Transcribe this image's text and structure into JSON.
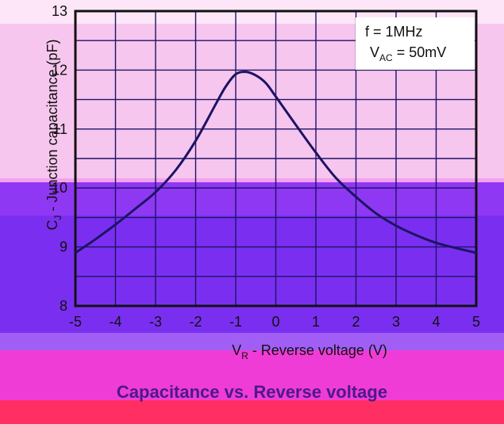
{
  "colors": {
    "band_pink_light": "#fde6f7",
    "band_pink": "#f7c6ee",
    "band_magenta": "#f3a2ec",
    "band_purple": "#8f38f4",
    "band_violet": "#7a2ff0",
    "band_violet_mid": "#a05ef5",
    "band_hot_pink": "#f03cd6",
    "band_red": "#ff2e63",
    "curve": "#1c1464",
    "frame": "#111111",
    "grid": "#1c1464"
  },
  "caption": "Capacitance vs. Reverse voltage",
  "chart_data": {
    "type": "line",
    "xlabel": "V",
    "xlabel_sub": "R",
    "xlabel_rest": " - Reverse voltage (V)",
    "ylabel": "C",
    "ylabel_sub": "J",
    "ylabel_rest": " - Junction capacitance (pF)",
    "xlim": [
      -5,
      5
    ],
    "ylim": [
      8,
      13
    ],
    "x_ticks": [
      -5,
      -4,
      -3,
      -2,
      -1,
      0,
      1,
      2,
      3,
      4,
      5
    ],
    "x_tick_labels": [
      "-5",
      "-4",
      "-3",
      "-2",
      "-1",
      "0",
      "1",
      "2",
      "3",
      "4",
      "5"
    ],
    "y_ticks": [
      8,
      9,
      10,
      11,
      12,
      13
    ],
    "y_tick_labels": [
      "8",
      "9",
      "10",
      "11",
      "12",
      "13"
    ],
    "grid": true,
    "annotations": [
      {
        "text": "f = 1MHz"
      },
      {
        "text": "V",
        "sub": "AC",
        "rest": " = 50mV"
      }
    ],
    "series": [
      {
        "x": [
          -5,
          -4.5,
          -4,
          -3.5,
          -3,
          -2.5,
          -2,
          -1.5,
          -1.25,
          -1,
          -0.75,
          -0.5,
          -0.25,
          0,
          0.5,
          1,
          1.5,
          2,
          2.5,
          3,
          3.5,
          4,
          4.5,
          5
        ],
        "y": [
          8.9,
          9.13,
          9.38,
          9.65,
          9.93,
          10.3,
          10.8,
          11.42,
          11.72,
          11.93,
          11.97,
          11.91,
          11.78,
          11.55,
          11.07,
          10.6,
          10.17,
          9.85,
          9.57,
          9.36,
          9.2,
          9.07,
          8.98,
          8.9
        ]
      }
    ]
  }
}
